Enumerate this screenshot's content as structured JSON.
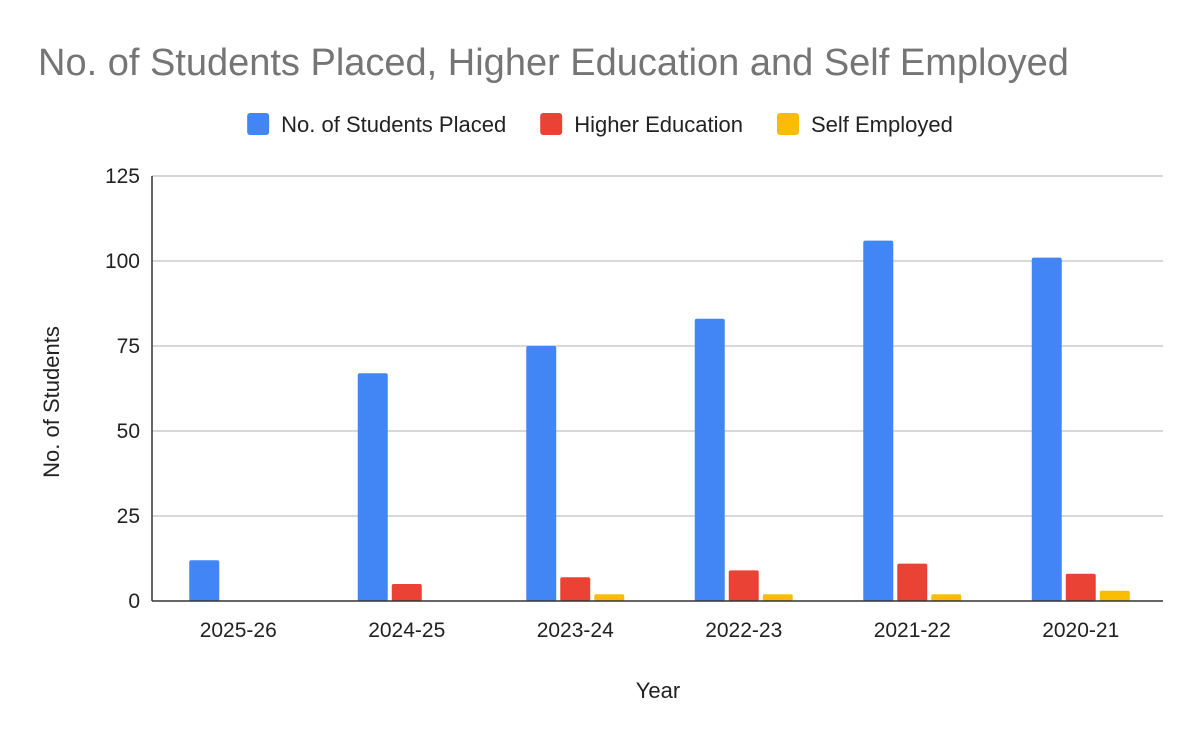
{
  "chart_data": {
    "type": "bar",
    "title": "No. of Students Placed, Higher Education and Self Employed",
    "xlabel": "Year",
    "ylabel": "No. of Students",
    "ylim": [
      0,
      125
    ],
    "yticks": [
      0,
      25,
      50,
      75,
      100,
      125
    ],
    "grid": true,
    "legend_position": "top",
    "categories": [
      "2025-26",
      "2024-25",
      "2023-24",
      "2022-23",
      "2021-22",
      "2020-21"
    ],
    "series": [
      {
        "name": "No. of Students Placed",
        "color": "#4285f4",
        "values": [
          12,
          67,
          75,
          83,
          106,
          101
        ]
      },
      {
        "name": "Higher Education",
        "color": "#ea4335",
        "values": [
          0,
          5,
          7,
          9,
          11,
          8
        ]
      },
      {
        "name": "Self Employed",
        "color": "#fbbc04",
        "values": [
          0,
          0,
          2,
          2,
          2,
          3
        ]
      }
    ]
  }
}
